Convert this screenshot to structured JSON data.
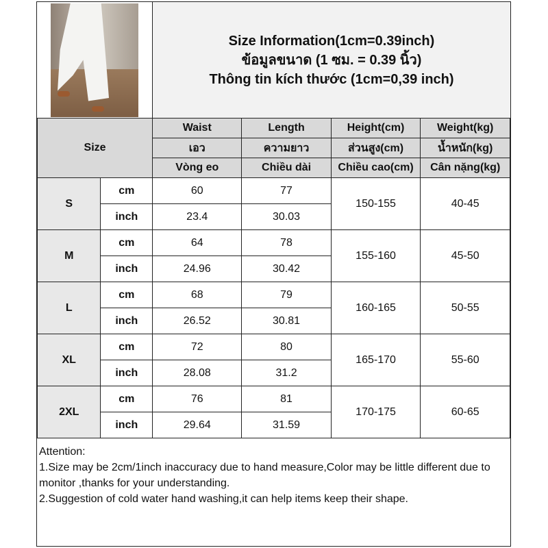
{
  "title_lines": [
    "Size Information(1cm=0.39inch)",
    "ข้อมูลขนาด (1 ซม. = 0.39 นิ้ว)",
    "Thông tin kích thước (1cm=0,39 inch)"
  ],
  "size_header": "Size",
  "columns": [
    [
      "Waist",
      "เอว",
      "Vòng eo"
    ],
    [
      "Length",
      "ความยาว",
      "Chiều dài"
    ],
    [
      "Height(cm)",
      "ส่วนสูง(cm)",
      "Chiều cao(cm)"
    ],
    [
      "Weight(kg)",
      "น้ำหนัก(kg)",
      "Cân nặng(kg)"
    ]
  ],
  "units": [
    "cm",
    "inch"
  ],
  "rows": [
    {
      "size": "S",
      "cm": [
        "60",
        "77"
      ],
      "inch": [
        "23.4",
        "30.03"
      ],
      "height": "150-155",
      "weight": "40-45"
    },
    {
      "size": "M",
      "cm": [
        "64",
        "78"
      ],
      "inch": [
        "24.96",
        "30.42"
      ],
      "height": "155-160",
      "weight": "45-50"
    },
    {
      "size": "L",
      "cm": [
        "68",
        "79"
      ],
      "inch": [
        "26.52",
        "30.81"
      ],
      "height": "160-165",
      "weight": "50-55"
    },
    {
      "size": "XL",
      "cm": [
        "72",
        "80"
      ],
      "inch": [
        "28.08",
        "31.2"
      ],
      "height": "165-170",
      "weight": "55-60"
    },
    {
      "size": "2XL",
      "cm": [
        "76",
        "81"
      ],
      "inch": [
        "29.64",
        "31.59"
      ],
      "height": "170-175",
      "weight": "60-65"
    }
  ],
  "attention": [
    "Attention:",
    "1.Size may be 2cm/1inch inaccuracy due to hand measure,Color may be little different due to monitor ,thanks for your understanding.",
    "2.Suggestion of cold water hand washing,it can help items keep their shape."
  ]
}
